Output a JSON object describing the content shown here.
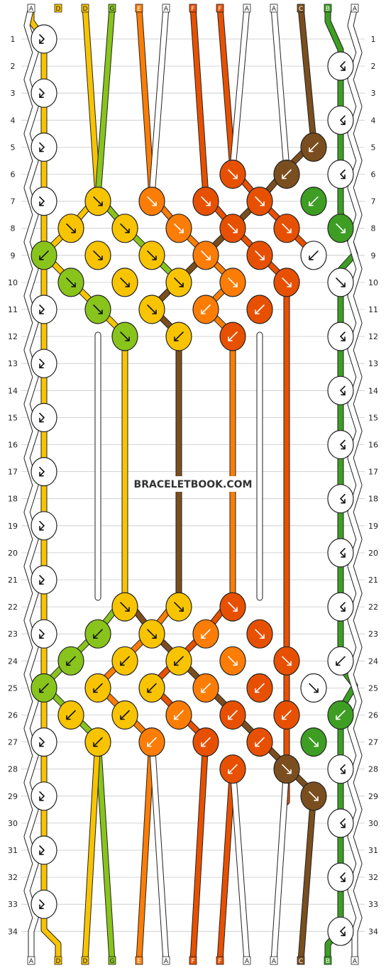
{
  "watermark": "BRACELETBOOK.COM",
  "top_labels": [
    "A",
    "D",
    "D",
    "G",
    "E",
    "A",
    "F",
    "F",
    "A",
    "A",
    "C",
    "B",
    "A"
  ],
  "bottom_labels": [
    "A",
    "D",
    "D",
    "G",
    "E",
    "A",
    "F",
    "F",
    "A",
    "A",
    "C",
    "B",
    "A"
  ],
  "row_numbers": [
    "1",
    "2",
    "3",
    "4",
    "5",
    "6",
    "7",
    "8",
    "9",
    "10",
    "11",
    "12",
    "13",
    "14",
    "15",
    "16",
    "17",
    "18",
    "19",
    "20",
    "21",
    "22",
    "23",
    "24",
    "25",
    "26",
    "27",
    "28",
    "29",
    "30",
    "31",
    "32",
    "33",
    "34"
  ],
  "colors": {
    "A": "#ffffff",
    "B": "#3d9e23",
    "C": "#7a4e1e",
    "D": "#f8c400",
    "E": "#fb7d06",
    "F": "#e85001",
    "G": "#88c41c",
    "outline": "#222222",
    "grid": "#c8c8c8"
  }
}
